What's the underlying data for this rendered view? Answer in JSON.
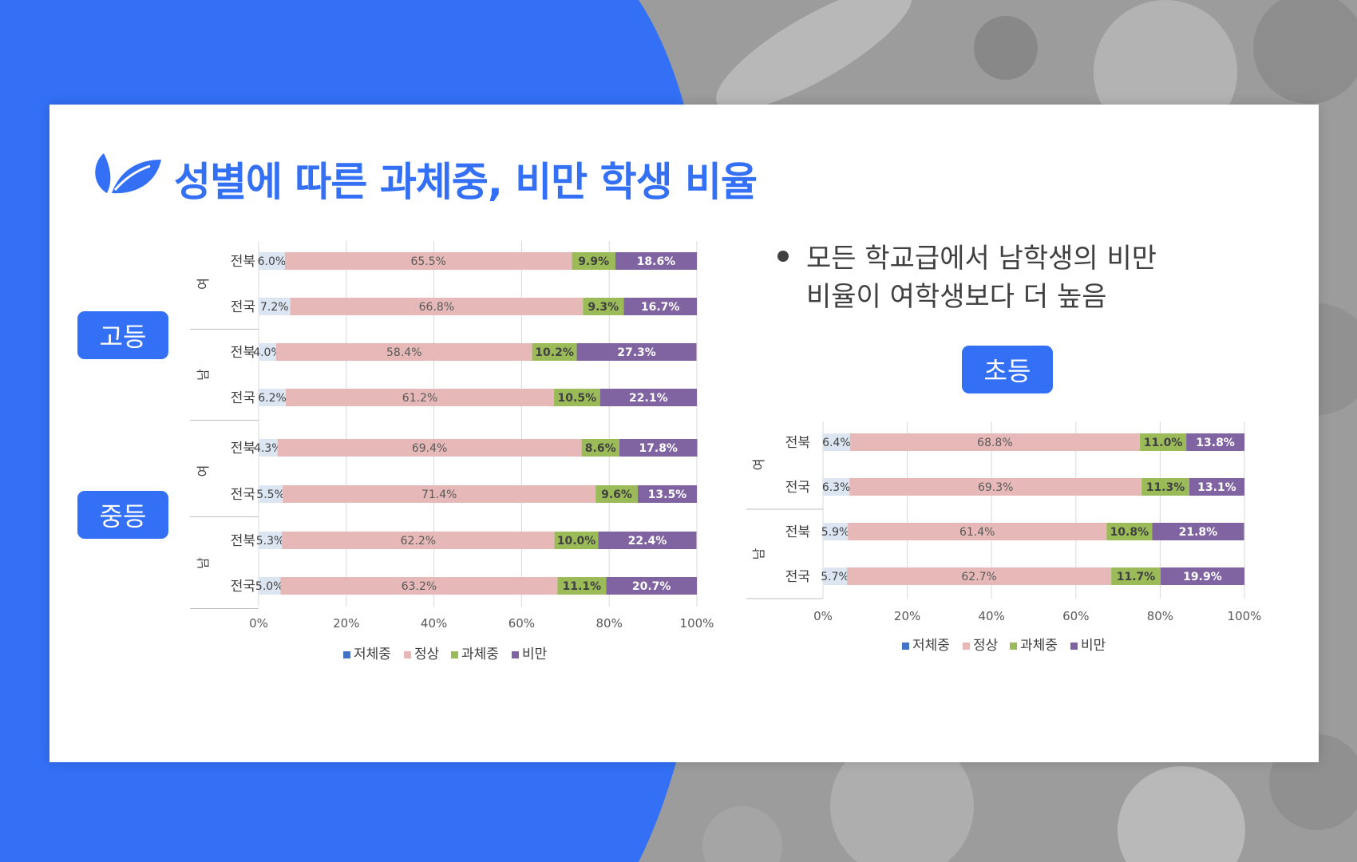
{
  "title": "성별에 따른 과체중, 비만 학생 비율",
  "colors": {
    "accent": "#3370f5",
    "underweight": "#4472c4",
    "normal": "#e6b9b8",
    "overweight": "#9bbb59",
    "obese": "#8064a2",
    "underweight_bar": "#dce6f2"
  },
  "badges": {
    "high": "고등",
    "middle": "중등",
    "elementary": "초등"
  },
  "note": {
    "line1": "모든 학교급에서 남학생의 비만",
    "line2": "비율이 여학생보다 더 높음"
  },
  "legend": [
    "저체중",
    "정상",
    "과체중",
    "비만"
  ],
  "chart_data": [
    {
      "type": "bar",
      "stacked": "percent",
      "orientation": "horizontal",
      "title": "",
      "groups": [
        "여",
        "남",
        "여",
        "남"
      ],
      "categories": [
        "전북",
        "전국",
        "전북",
        "전국",
        "전북",
        "전국",
        "전북",
        "전국"
      ],
      "series": [
        {
          "name": "저체중",
          "values": [
            6.0,
            7.2,
            4.0,
            6.2,
            4.3,
            5.5,
            5.3,
            5.0
          ]
        },
        {
          "name": "정상",
          "values": [
            65.5,
            66.8,
            58.4,
            61.2,
            69.4,
            71.4,
            62.2,
            63.2
          ]
        },
        {
          "name": "과체중",
          "values": [
            9.9,
            9.3,
            10.2,
            10.5,
            8.6,
            9.6,
            10.0,
            11.1
          ]
        },
        {
          "name": "비만",
          "values": [
            18.6,
            16.7,
            27.3,
            22.1,
            17.8,
            13.5,
            22.4,
            20.7
          ]
        }
      ],
      "xticks": [
        "0%",
        "20%",
        "40%",
        "60%",
        "80%",
        "100%"
      ],
      "xlim": [
        0,
        100
      ],
      "legend_position": "bottom"
    },
    {
      "type": "bar",
      "stacked": "percent",
      "orientation": "horizontal",
      "title": "",
      "groups": [
        "여",
        "남"
      ],
      "categories": [
        "전북",
        "전국",
        "전북",
        "전국"
      ],
      "series": [
        {
          "name": "저체중",
          "values": [
            6.4,
            6.3,
            5.9,
            5.7
          ]
        },
        {
          "name": "정상",
          "values": [
            68.8,
            69.3,
            61.4,
            62.7
          ]
        },
        {
          "name": "과체중",
          "values": [
            11.0,
            11.3,
            10.8,
            11.7
          ]
        },
        {
          "name": "비만",
          "values": [
            13.8,
            13.1,
            21.8,
            19.9
          ]
        }
      ],
      "xticks": [
        "0%",
        "20%",
        "40%",
        "60%",
        "80%",
        "100%"
      ],
      "xlim": [
        0,
        100
      ],
      "legend_position": "bottom"
    }
  ]
}
